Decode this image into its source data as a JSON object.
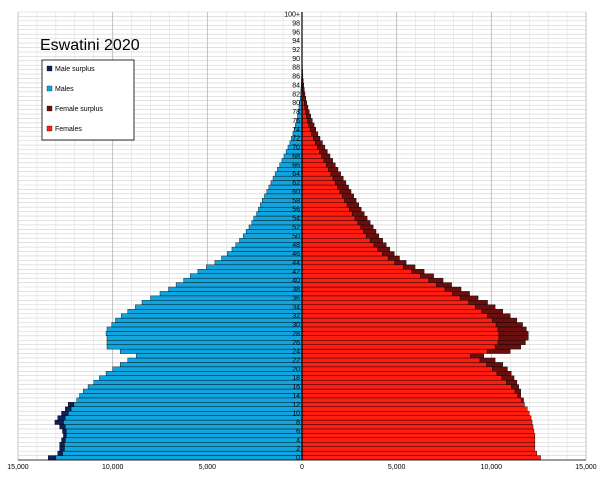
{
  "chart_data": {
    "type": "bar",
    "orientation": "horizontal-pyramid",
    "title": "Eswatini 2020",
    "xlim": [
      -15000,
      15000
    ],
    "x_ticks": [
      -15000,
      -10000,
      -5000,
      0,
      5000,
      10000,
      15000
    ],
    "x_tick_labels": [
      "15,000",
      "10,000",
      "5,000",
      "0",
      "5,000",
      "10,000",
      "15,000"
    ],
    "y_tick_labels": [
      "0",
      "2",
      "4",
      "6",
      "8",
      "10",
      "12",
      "14",
      "16",
      "18",
      "20",
      "22",
      "24",
      "26",
      "28",
      "30",
      "32",
      "34",
      "36",
      "38",
      "40",
      "42",
      "44",
      "46",
      "48",
      "50",
      "52",
      "54",
      "56",
      "58",
      "60",
      "62",
      "64",
      "66",
      "68",
      "70",
      "72",
      "74",
      "76",
      "78",
      "80",
      "82",
      "84",
      "86",
      "88",
      "90",
      "92",
      "94",
      "96",
      "98",
      "100+"
    ],
    "legend": {
      "placement": "top-left",
      "entries": [
        {
          "name": "Male surplus",
          "color": "#10205a"
        },
        {
          "name": "Males",
          "color": "#11a5e0"
        },
        {
          "name": "Female surplus",
          "color": "#6b0e0e"
        },
        {
          "name": "Females",
          "color": "#ff1c10"
        }
      ]
    },
    "grid": true,
    "ages": [
      0,
      1,
      2,
      3,
      4,
      5,
      6,
      7,
      8,
      9,
      10,
      11,
      12,
      13,
      14,
      15,
      16,
      17,
      18,
      19,
      20,
      21,
      22,
      23,
      24,
      25,
      26,
      27,
      28,
      29,
      30,
      31,
      32,
      33,
      34,
      35,
      36,
      37,
      38,
      39,
      40,
      41,
      42,
      43,
      44,
      45,
      46,
      47,
      48,
      49,
      50,
      51,
      52,
      53,
      54,
      55,
      56,
      57,
      58,
      59,
      60,
      61,
      62,
      63,
      64,
      65,
      66,
      67,
      68,
      69,
      70,
      71,
      72,
      73,
      74,
      75,
      76,
      77,
      78,
      79,
      80,
      81,
      82,
      83,
      84,
      85,
      86,
      87,
      88,
      89,
      90,
      91,
      92,
      93,
      94,
      95,
      96,
      97,
      98,
      99,
      100
    ],
    "series": [
      {
        "name": "Males",
        "values": [
          13000,
          12650,
          12550,
          12550,
          12500,
          12450,
          12450,
          12500,
          12600,
          12500,
          12350,
          12200,
          12050,
          11900,
          11750,
          11550,
          11300,
          11000,
          10700,
          10350,
          10000,
          9600,
          9200,
          8750,
          9600,
          10300,
          10300,
          10300,
          10350,
          10300,
          10050,
          9850,
          9550,
          9200,
          8800,
          8450,
          8000,
          7500,
          7050,
          6650,
          6250,
          5900,
          5500,
          5050,
          4600,
          4250,
          3950,
          3700,
          3500,
          3300,
          3100,
          2950,
          2800,
          2650,
          2550,
          2400,
          2300,
          2200,
          2100,
          1980,
          1860,
          1750,
          1640,
          1530,
          1420,
          1300,
          1180,
          1060,
          950,
          840,
          740,
          640,
          560,
          480,
          410,
          350,
          290,
          240,
          195,
          160,
          125,
          95,
          72,
          55,
          40,
          28,
          19,
          12,
          8,
          5,
          3,
          2,
          1,
          1,
          0,
          0,
          0,
          0,
          0,
          0,
          0
        ]
      },
      {
        "name": "Females",
        "values": [
          12600,
          12400,
          12300,
          12300,
          12300,
          12300,
          12250,
          12200,
          12150,
          12100,
          12000,
          11900,
          11750,
          11600,
          11400,
          11250,
          11050,
          10800,
          10550,
          10300,
          10050,
          9750,
          9400,
          8900,
          9800,
          10200,
          10350,
          10400,
          10400,
          10350,
          10250,
          10050,
          9800,
          9500,
          9150,
          8800,
          8350,
          7950,
          7550,
          7100,
          6700,
          6250,
          5800,
          5350,
          4900,
          4550,
          4250,
          4000,
          3800,
          3600,
          3400,
          3250,
          3100,
          2950,
          2800,
          2650,
          2500,
          2380,
          2250,
          2130,
          2000,
          1880,
          1760,
          1640,
          1520,
          1400,
          1280,
          1160,
          1040,
          920,
          810,
          700,
          600,
          510,
          430,
          360,
          295,
          240,
          190,
          150,
          115,
          85,
          62,
          44,
          30,
          20,
          13,
          8,
          5,
          3,
          2,
          1,
          1,
          0,
          0,
          0,
          0,
          0,
          0,
          0,
          0
        ]
      },
      {
        "name": "Female surplus",
        "values": [
          0,
          0,
          0,
          0,
          0,
          0,
          0,
          0,
          0,
          0,
          0,
          0,
          0,
          100,
          150,
          300,
          400,
          550,
          650,
          750,
          800,
          850,
          800,
          700,
          1200,
          1350,
          1450,
          1550,
          1550,
          1500,
          1400,
          1300,
          1200,
          1100,
          1050,
          1000,
          950,
          900,
          850,
          800,
          750,
          700,
          650,
          620,
          600,
          600,
          620,
          640,
          650,
          660,
          660,
          660,
          660,
          650,
          640,
          640,
          630,
          620,
          610,
          600,
          590,
          580,
          560,
          540,
          520,
          500,
          480,
          460,
          440,
          420,
          400,
          380,
          350,
          330,
          300,
          280,
          250,
          220,
          190,
          165,
          140,
          115,
          95,
          75,
          60,
          45,
          33,
          24,
          16,
          10,
          6,
          4,
          2,
          1,
          1,
          0,
          0,
          0,
          0,
          0,
          0
        ]
      },
      {
        "name": "Male surplus",
        "values": [
          400,
          250,
          250,
          250,
          200,
          150,
          200,
          300,
          450,
          400,
          350,
          300,
          300,
          0,
          0,
          0,
          0,
          0,
          0,
          0,
          0,
          0,
          0,
          0,
          0,
          0,
          0,
          0,
          0,
          0,
          0,
          0,
          0,
          0,
          0,
          0,
          0,
          0,
          0,
          0,
          0,
          0,
          0,
          0,
          0,
          0,
          0,
          0,
          0,
          0,
          0,
          0,
          0,
          0,
          0,
          0,
          0,
          0,
          0,
          0,
          0,
          0,
          0,
          0,
          0,
          0,
          0,
          0,
          0,
          0,
          0,
          0,
          0,
          0,
          0,
          0,
          0,
          0,
          0,
          0,
          0,
          0,
          0,
          0,
          0,
          0,
          0,
          0,
          0,
          0,
          0,
          0,
          0,
          0,
          0,
          0,
          0,
          0,
          0,
          0,
          0
        ]
      }
    ]
  }
}
